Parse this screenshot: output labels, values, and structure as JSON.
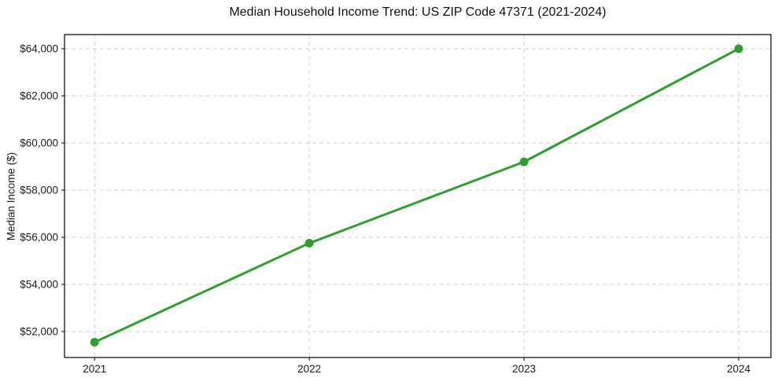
{
  "chart_data": {
    "type": "line",
    "title": "Median Household Income Trend: US ZIP Code 47371 (2021-2024)",
    "xlabel": "",
    "ylabel": "Median Income ($)",
    "x": [
      2021,
      2022,
      2023,
      2024
    ],
    "x_tick_labels": [
      "2021",
      "2022",
      "2023",
      "2024"
    ],
    "series": [
      {
        "name": "Median Household Income",
        "values": [
          51550,
          55750,
          59200,
          64000
        ]
      }
    ],
    "y_ticks": [
      52000,
      54000,
      56000,
      58000,
      60000,
      62000,
      64000
    ],
    "y_tick_labels": [
      "$52,000",
      "$54,000",
      "$56,000",
      "$58,000",
      "$60,000",
      "$62,000",
      "$64,000"
    ],
    "xlim": [
      2020.86,
      2024.15
    ],
    "ylim": [
      50900,
      64600
    ],
    "grid": true,
    "legend": "none",
    "line_color": "#2ca02c",
    "marker_color": "#2ca02c",
    "marker": "circle",
    "background": "#ffffff"
  }
}
